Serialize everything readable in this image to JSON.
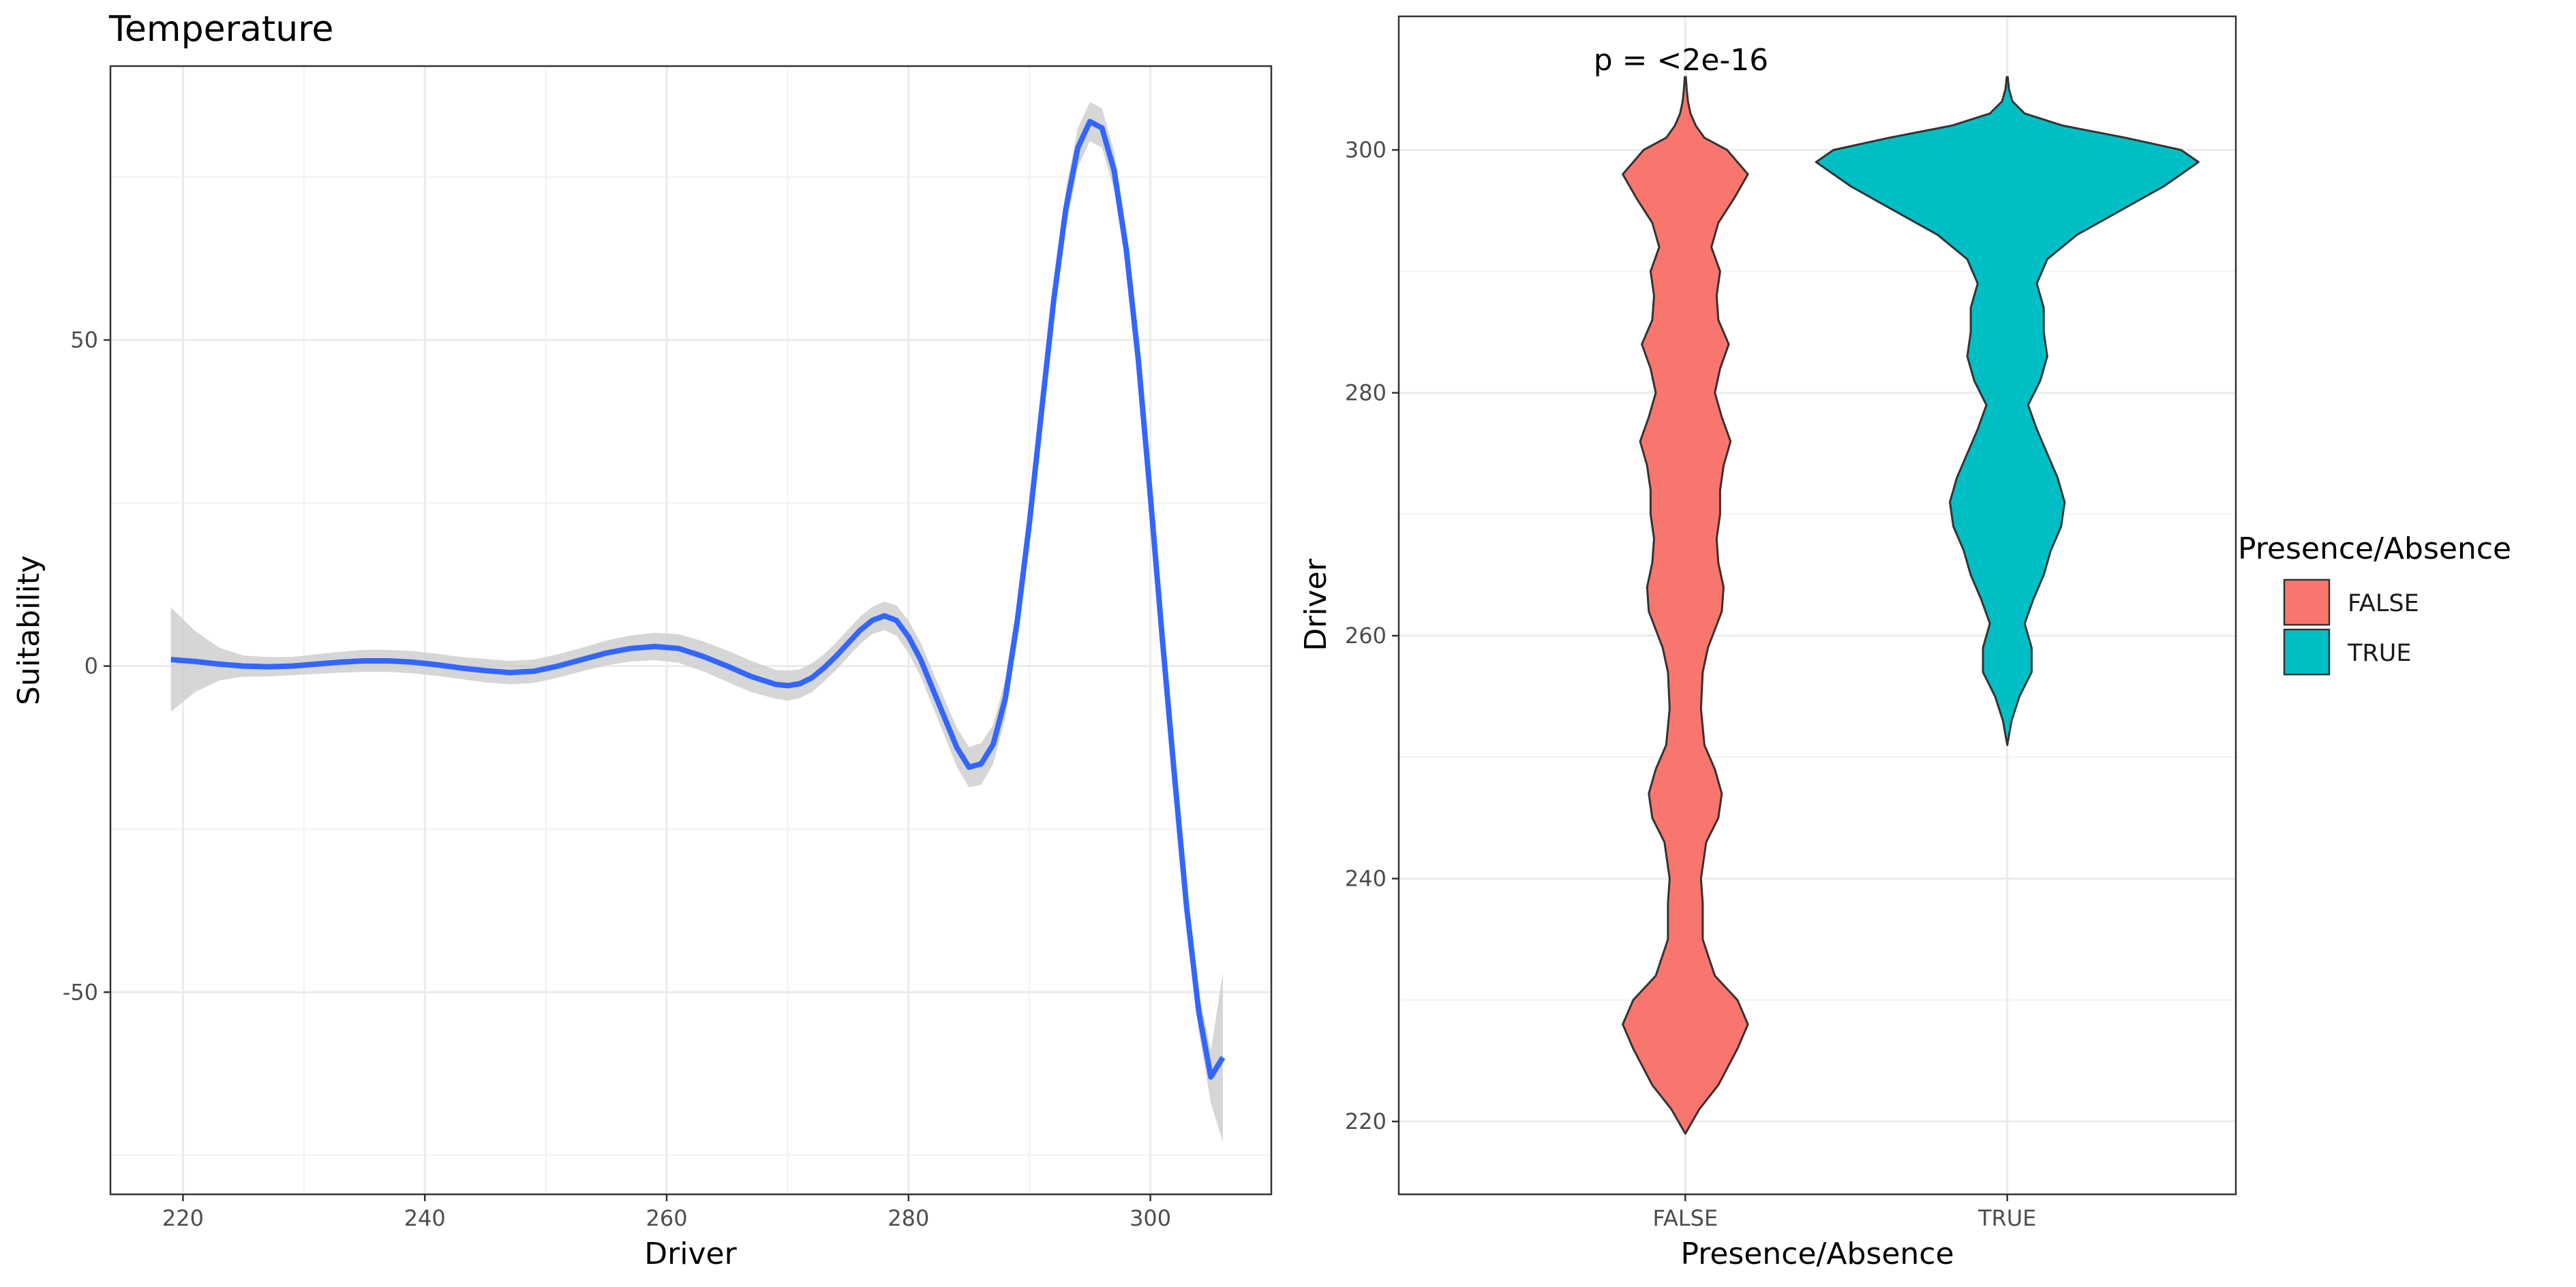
{
  "chart_data": [
    {
      "type": "line",
      "title": "Temperature",
      "xlabel": "Driver",
      "ylabel": "Suitability",
      "xlim": [
        214,
        310
      ],
      "ylim": [
        -81,
        92
      ],
      "x_ticks": [
        220,
        240,
        260,
        280,
        300
      ],
      "y_ticks": [
        -50,
        0,
        50
      ],
      "y_tick_labels": [
        "-50",
        "0",
        "50"
      ],
      "grid": true,
      "colors": {
        "line": "#3366FF",
        "ribbon": "#cccccc"
      },
      "series": [
        {
          "x": [
            219,
            221,
            223,
            225,
            227,
            229,
            231,
            233,
            235,
            237,
            239,
            241,
            243,
            245,
            247,
            249,
            251,
            253,
            255,
            257,
            259,
            261,
            263,
            265,
            267,
            269,
            270,
            271,
            272,
            273,
            274,
            275,
            276,
            277,
            278,
            279,
            280,
            281,
            282,
            283,
            284,
            285,
            286,
            287,
            288,
            289,
            290,
            291,
            292,
            293,
            294,
            295,
            296,
            297,
            298,
            299,
            300,
            301,
            302,
            303,
            304,
            305,
            306
          ],
          "y": [
            1,
            0.7,
            0.3,
            0,
            -0.1,
            0,
            0.3,
            0.6,
            0.8,
            0.8,
            0.6,
            0.2,
            -0.3,
            -0.7,
            -1,
            -0.8,
            0,
            1,
            2,
            2.7,
            3,
            2.7,
            1.5,
            0,
            -1.6,
            -2.8,
            -3,
            -2.7,
            -1.8,
            -0.3,
            1.5,
            3.5,
            5.5,
            7,
            7.7,
            7,
            4.5,
            1,
            -3.5,
            -8,
            -12.5,
            -15.5,
            -15,
            -12,
            -5,
            7,
            22,
            39,
            56,
            70,
            79.5,
            83.5,
            82.5,
            76,
            64,
            47,
            26,
            4,
            -17,
            -37,
            -53,
            -63,
            -60
          ],
          "lower": [
            -7,
            -4,
            -2.2,
            -1.6,
            -1.6,
            -1.4,
            -1.2,
            -1,
            -0.9,
            -0.9,
            -1.1,
            -1.5,
            -2,
            -2.5,
            -2.8,
            -2.6,
            -1.8,
            -0.8,
            0.1,
            0.7,
            0.9,
            0.5,
            -0.8,
            -2.4,
            -4,
            -5,
            -5.3,
            -4.9,
            -4,
            -2.4,
            -0.6,
            1.4,
            3.4,
            4.9,
            5.5,
            4.7,
            2,
            -1.6,
            -6.2,
            -10.8,
            -15.5,
            -18.6,
            -18.2,
            -15,
            -8,
            4,
            19,
            36,
            53,
            67,
            76.5,
            80.5,
            79.5,
            73,
            61,
            44,
            23,
            1,
            -20,
            -40,
            -56,
            -67,
            -73
          ],
          "upper": [
            9,
            5.4,
            2.8,
            1.6,
            1.4,
            1.4,
            1.8,
            2.2,
            2.5,
            2.5,
            2.3,
            1.9,
            1.4,
            1.1,
            0.8,
            1,
            1.8,
            2.8,
            3.9,
            4.7,
            5.1,
            4.9,
            3.8,
            2.4,
            0.8,
            -0.6,
            -0.7,
            -0.5,
            0.4,
            1.8,
            3.6,
            5.6,
            7.6,
            9.1,
            9.9,
            9.3,
            7,
            3.6,
            -0.8,
            -5.2,
            -9.5,
            -12.4,
            -11.8,
            -9,
            -2,
            10,
            25,
            42,
            59,
            73,
            82.5,
            86.5,
            85.5,
            79,
            67,
            50,
            29,
            7,
            -14,
            -34,
            -50,
            -59,
            -47
          ]
        }
      ]
    },
    {
      "type": "violin",
      "xlabel": "Presence/Absence",
      "ylabel": "Driver",
      "categories": [
        "FALSE",
        "TRUE"
      ],
      "ylim": [
        214,
        311
      ],
      "y_ticks": [
        220,
        240,
        260,
        280,
        300
      ],
      "y_tick_labels": [
        "220",
        "240",
        "260",
        "280",
        "300"
      ],
      "grid": true,
      "annotation": "p = <2e-16",
      "legend": {
        "title": "Presence/Absence",
        "placement": "right",
        "entries": [
          "FALSE",
          "TRUE"
        ]
      },
      "colors": {
        "FALSE": "#F8766D",
        "TRUE": "#00BFC4"
      },
      "series": [
        {
          "name": "FALSE",
          "y": [
            219,
            221,
            223,
            226,
            228,
            230,
            232,
            235,
            238,
            240,
            243,
            245,
            247,
            249,
            251,
            254,
            257,
            259,
            262,
            264,
            266,
            268,
            270,
            272,
            274,
            276,
            278,
            280,
            282,
            284,
            286,
            288,
            290,
            292,
            294,
            296,
            298,
            300,
            301,
            302,
            303,
            304,
            305,
            306
          ],
          "half_width": [
            0,
            8,
            19,
            30,
            36,
            30,
            17,
            10,
            10,
            9,
            12,
            19,
            21,
            17,
            11,
            9,
            10,
            13,
            21,
            22,
            19,
            18,
            20,
            20,
            22,
            26,
            21,
            17,
            20,
            25,
            19,
            18,
            20,
            15,
            19,
            28,
            36,
            24,
            11,
            6,
            3,
            1.5,
            0.8,
            0.3
          ]
        },
        {
          "name": "TRUE",
          "y": [
            251,
            253,
            255,
            257,
            259,
            261,
            263,
            265,
            267,
            269,
            271,
            273,
            275,
            277,
            279,
            281,
            283,
            285,
            287,
            289,
            291,
            293,
            295,
            297,
            299,
            300,
            301,
            302,
            303,
            304,
            305,
            306
          ],
          "half_width": [
            0,
            2.5,
            7,
            14,
            14,
            10,
            15,
            21,
            25,
            31,
            33,
            29,
            23,
            17,
            12,
            19,
            23,
            21,
            21,
            17,
            23,
            40,
            65,
            90,
            110,
            100,
            68,
            32,
            10,
            3,
            1,
            0.3
          ]
        }
      ]
    }
  ]
}
